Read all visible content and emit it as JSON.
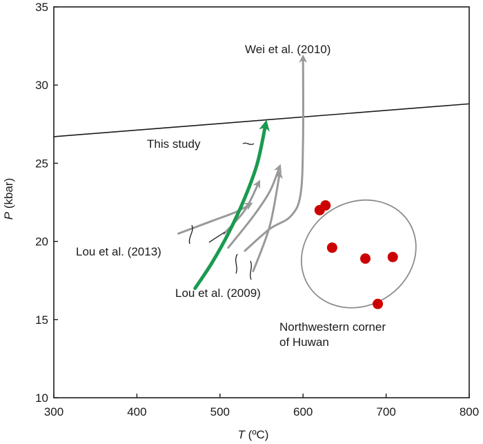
{
  "chart_data": {
    "type": "scatter",
    "xlabel": {
      "symbol": "T",
      "unit": "(ºC)"
    },
    "ylabel": {
      "symbol": "P",
      "unit": "(kbar)"
    },
    "xlim": [
      300,
      800
    ],
    "ylim": [
      10,
      35
    ],
    "x_ticks": [
      "300",
      "400",
      "500",
      "600",
      "700",
      "800"
    ],
    "y_ticks": [
      "10",
      "15",
      "20",
      "25",
      "30",
      "35"
    ],
    "grid": false,
    "reference_line": {
      "x": [
        300,
        800
      ],
      "y": [
        26.7,
        28.8
      ]
    },
    "paths": [
      {
        "name": "This study",
        "color": "#1a9a50",
        "x": [
          470,
          490,
          510,
          530,
          545,
          555
        ],
        "y": [
          17.0,
          18.6,
          20.5,
          22.8,
          25.0,
          27.5
        ]
      },
      {
        "name": "Lou et al. (2013)",
        "color": "#999999",
        "x": [
          450,
          490,
          520,
          537
        ],
        "y": [
          20.5,
          21.3,
          21.9,
          22.4
        ]
      },
      {
        "name": "Lou et al. (2013)",
        "color": "#999999",
        "x": [
          505,
          530,
          547
        ],
        "y": [
          20.5,
          22.0,
          23.8
        ]
      },
      {
        "name": "Lou et al. (2009)",
        "color": "#999999",
        "x": [
          510,
          540,
          560,
          572
        ],
        "y": [
          19.6,
          21.6,
          23.2,
          24.8
        ]
      },
      {
        "name": "Lou et al. (2009)",
        "color": "#999999",
        "x": [
          540,
          560,
          572
        ],
        "y": [
          18.1,
          21.0,
          24.4
        ]
      },
      {
        "name": "Wei et al. (2010)",
        "color": "#999999",
        "x": [
          530,
          560,
          585,
          597,
          600,
          600
        ],
        "y": [
          19.4,
          20.8,
          21.6,
          23.0,
          26.5,
          31.8
        ]
      }
    ],
    "points": {
      "name": "Northwestern corner of Huwan",
      "color": "#cc0000",
      "x": [
        620,
        627,
        635,
        675,
        690,
        708
      ],
      "y": [
        22.0,
        22.3,
        19.6,
        18.9,
        16.0,
        19.0
      ]
    },
    "point_region": {
      "cx": 667,
      "cy": 19.2,
      "rx": 62,
      "ry": 3.8,
      "angle_deg": 58
    },
    "annotations": [
      {
        "id": "wei",
        "text": "Wei et al. (2010)"
      },
      {
        "id": "this",
        "text": "This study"
      },
      {
        "id": "lou2013",
        "text": "Lou et al. (2013)"
      },
      {
        "id": "lou2009",
        "text": "Lou et al. (2009)"
      },
      {
        "id": "nw1",
        "text": "Northwestern corner"
      },
      {
        "id": "nw2",
        "text": "of Huwan"
      }
    ]
  }
}
